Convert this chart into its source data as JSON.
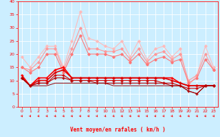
{
  "title": "",
  "xlabel": "Vent moyen/en rafales ( km/h )",
  "ylabel": "",
  "xlim": [
    -0.5,
    23.5
  ],
  "ylim": [
    0,
    40
  ],
  "yticks": [
    0,
    5,
    10,
    15,
    20,
    25,
    30,
    35,
    40
  ],
  "xticks": [
    0,
    1,
    2,
    3,
    4,
    5,
    6,
    7,
    8,
    9,
    10,
    11,
    12,
    13,
    14,
    15,
    16,
    17,
    18,
    19,
    20,
    21,
    22,
    23
  ],
  "background_color": "#cceeff",
  "grid_color": "#ffffff",
  "series": [
    {
      "y": [
        19,
        15,
        19,
        23,
        23,
        15,
        25,
        36,
        26,
        25,
        23,
        22,
        25,
        19,
        25,
        18,
        22,
        23,
        19,
        22,
        8,
        12,
        23,
        15
      ],
      "color": "#ffbbbb",
      "lw": 0.8,
      "marker": "D",
      "ms": 1.8
    },
    {
      "y": [
        15,
        14,
        17,
        22,
        22,
        14,
        22,
        30,
        22,
        22,
        21,
        21,
        22,
        18,
        22,
        17,
        20,
        21,
        18,
        20,
        10,
        12,
        20,
        14
      ],
      "color": "#ff9999",
      "lw": 0.8,
      "marker": "D",
      "ms": 1.8
    },
    {
      "y": [
        15,
        13,
        15,
        20,
        20,
        13,
        20,
        27,
        20,
        20,
        20,
        19,
        20,
        17,
        20,
        16,
        18,
        19,
        17,
        18,
        9,
        11,
        18,
        14
      ],
      "color": "#ff7777",
      "lw": 0.8,
      "marker": "D",
      "ms": 1.8
    },
    {
      "y": [
        12,
        8,
        11,
        11,
        14,
        15,
        11,
        11,
        11,
        11,
        11,
        11,
        11,
        11,
        11,
        11,
        11,
        11,
        11,
        9,
        8,
        8,
        8,
        8
      ],
      "color": "#ff0000",
      "lw": 1.2,
      "marker": "+",
      "ms": 3.5
    },
    {
      "y": [
        11,
        8,
        10,
        10,
        13,
        14,
        11,
        11,
        11,
        11,
        11,
        11,
        11,
        11,
        11,
        11,
        11,
        11,
        10,
        9,
        8,
        8,
        8,
        8
      ],
      "color": "#dd0000",
      "lw": 1.2,
      "marker": "+",
      "ms": 3.5
    },
    {
      "y": [
        11,
        8,
        9,
        9,
        12,
        12,
        10,
        10,
        10,
        10,
        10,
        10,
        10,
        10,
        10,
        10,
        10,
        9,
        9,
        8,
        7,
        7,
        8,
        8
      ],
      "color": "#cc0000",
      "lw": 0.8,
      "marker": "+",
      "ms": 3.0
    },
    {
      "y": [
        11,
        8,
        9,
        9,
        11,
        11,
        10,
        10,
        10,
        9,
        9,
        9,
        9,
        9,
        9,
        9,
        9,
        9,
        8,
        8,
        6,
        5,
        8,
        8
      ],
      "color": "#bb0000",
      "lw": 0.8,
      "marker": "+",
      "ms": 3.0
    },
    {
      "y": [
        11,
        8,
        8,
        8,
        9,
        9,
        9,
        9,
        9,
        9,
        9,
        8,
        8,
        8,
        8,
        8,
        8,
        8,
        8,
        8,
        6,
        5,
        8,
        8
      ],
      "color": "#990000",
      "lw": 0.7,
      "marker": null,
      "ms": 0
    }
  ]
}
